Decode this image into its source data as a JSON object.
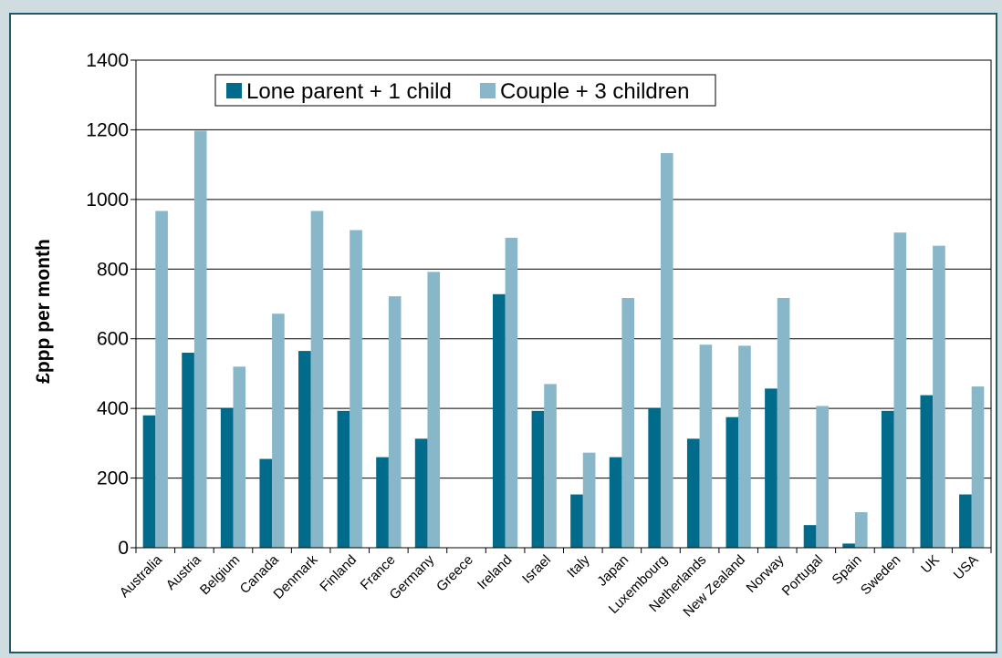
{
  "chart_data": {
    "type": "bar",
    "title": "",
    "xlabel": "",
    "ylabel": "£ppp per month",
    "ylim": [
      0,
      1400
    ],
    "yticks": [
      0,
      200,
      400,
      600,
      800,
      1000,
      1200,
      1400
    ],
    "grid": true,
    "legend_position": "top-left",
    "categories": [
      "Australia",
      "Austria",
      "Belgium",
      "Canada",
      "Denmark",
      "Finland",
      "France",
      "Germany",
      "Greece",
      "Ireland",
      "Israel",
      "Italy",
      "Japan",
      "Luxembourg",
      "Netherlands",
      "New Zealand",
      "Norway",
      "Portugal",
      "Spain",
      "Sweden",
      "UK",
      "USA"
    ],
    "series": [
      {
        "name": "Lone parent + 1 child",
        "color": "#006b8a",
        "values": [
          380,
          560,
          400,
          255,
          565,
          393,
          260,
          313,
          0,
          728,
          393,
          153,
          260,
          400,
          313,
          375,
          457,
          65,
          12,
          393,
          438,
          153
        ]
      },
      {
        "name": "Couple + 3 children",
        "color": "#88b7c9",
        "values": [
          967,
          1197,
          520,
          672,
          967,
          912,
          722,
          792,
          0,
          890,
          470,
          273,
          717,
          1133,
          583,
          580,
          717,
          407,
          102,
          905,
          867,
          463
        ]
      }
    ]
  }
}
